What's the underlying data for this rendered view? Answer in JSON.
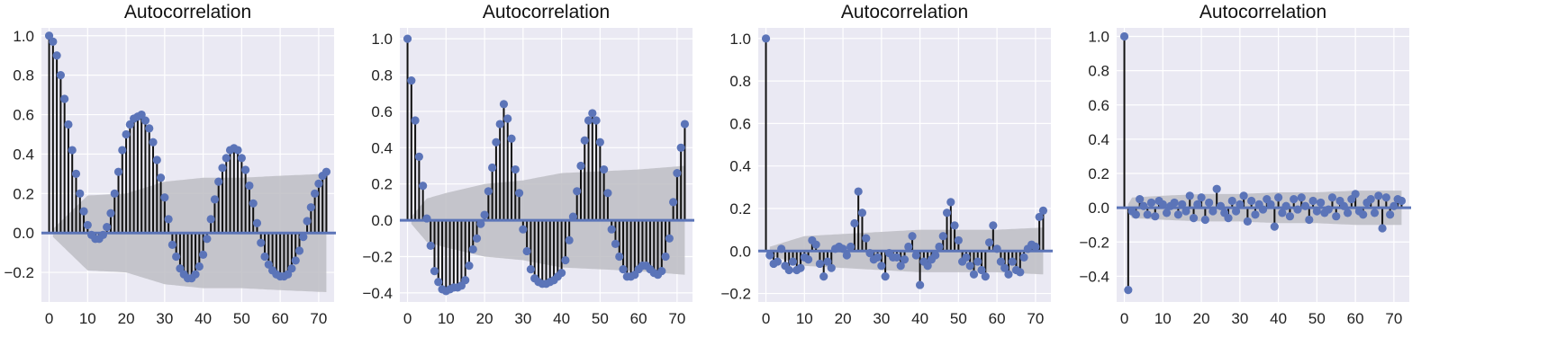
{
  "style": {
    "background": "#ffffff",
    "plot_background": "#eae9f3",
    "grid_color": "#ffffff",
    "stem_color": "#111111",
    "marker_color": "#5b74b8",
    "zero_line_color": "#5b74b8",
    "confidence_band_color": "#bdbdc3"
  },
  "chart_data": [
    {
      "type": "stem",
      "title": "Autocorrelation",
      "xlabel": "",
      "ylabel": "",
      "xlim": [
        -2,
        74
      ],
      "ylim": [
        -0.35,
        1.04
      ],
      "grid": true,
      "xticks": [
        0,
        10,
        20,
        30,
        40,
        50,
        60,
        70
      ],
      "yticks": [
        -0.2,
        0.0,
        0.2,
        0.4,
        0.6,
        0.8,
        1.0
      ],
      "confidence_band": {
        "lags": [
          1,
          10,
          20,
          30,
          40,
          50,
          60,
          72
        ],
        "upper": [
          0.02,
          0.19,
          0.2,
          0.26,
          0.28,
          0.28,
          0.29,
          0.3
        ],
        "lower": [
          -0.02,
          -0.19,
          -0.2,
          -0.26,
          -0.28,
          -0.28,
          -0.29,
          -0.3
        ]
      },
      "lags": [
        0,
        1,
        2,
        3,
        4,
        5,
        6,
        7,
        8,
        9,
        10,
        11,
        12,
        13,
        14,
        15,
        16,
        17,
        18,
        19,
        20,
        21,
        22,
        23,
        24,
        25,
        26,
        27,
        28,
        29,
        30,
        31,
        32,
        33,
        34,
        35,
        36,
        37,
        38,
        39,
        40,
        41,
        42,
        43,
        44,
        45,
        46,
        47,
        48,
        49,
        50,
        51,
        52,
        53,
        54,
        55,
        56,
        57,
        58,
        59,
        60,
        61,
        62,
        63,
        64,
        65,
        66,
        67,
        68,
        69,
        70,
        71,
        72
      ],
      "values": [
        1.0,
        0.97,
        0.9,
        0.8,
        0.68,
        0.55,
        0.42,
        0.3,
        0.2,
        0.11,
        0.04,
        -0.01,
        -0.03,
        -0.03,
        -0.01,
        0.03,
        0.1,
        0.2,
        0.31,
        0.42,
        0.5,
        0.55,
        0.58,
        0.59,
        0.6,
        0.57,
        0.53,
        0.46,
        0.37,
        0.28,
        0.18,
        0.07,
        -0.06,
        -0.12,
        -0.18,
        -0.21,
        -0.23,
        -0.23,
        -0.21,
        -0.17,
        -0.11,
        -0.03,
        0.07,
        0.17,
        0.26,
        0.33,
        0.38,
        0.42,
        0.43,
        0.42,
        0.38,
        0.32,
        0.24,
        0.15,
        0.05,
        -0.05,
        -0.12,
        -0.16,
        -0.19,
        -0.21,
        -0.22,
        -0.22,
        -0.21,
        -0.18,
        -0.14,
        -0.09,
        -0.02,
        0.06,
        0.13,
        0.2,
        0.25,
        0.29,
        0.31
      ]
    },
    {
      "type": "stem",
      "title": "Autocorrelation",
      "xlabel": "",
      "ylabel": "",
      "xlim": [
        -2,
        74
      ],
      "ylim": [
        -0.45,
        1.06
      ],
      "grid": true,
      "xticks": [
        0,
        10,
        20,
        30,
        40,
        50,
        60,
        70
      ],
      "yticks": [
        -0.4,
        -0.2,
        0.0,
        0.2,
        0.4,
        0.6,
        0.8,
        1.0
      ],
      "confidence_band": {
        "lags": [
          1,
          5,
          10,
          20,
          30,
          40,
          50,
          60,
          72
        ],
        "upper": [
          0.02,
          0.12,
          0.15,
          0.2,
          0.22,
          0.26,
          0.27,
          0.28,
          0.3
        ],
        "lower": [
          -0.02,
          -0.12,
          -0.15,
          -0.2,
          -0.22,
          -0.26,
          -0.27,
          -0.28,
          -0.3
        ]
      },
      "lags": [
        0,
        1,
        2,
        3,
        4,
        5,
        6,
        7,
        8,
        9,
        10,
        11,
        12,
        13,
        14,
        15,
        16,
        17,
        18,
        19,
        20,
        21,
        22,
        23,
        24,
        25,
        26,
        27,
        28,
        29,
        30,
        31,
        32,
        33,
        34,
        35,
        36,
        37,
        38,
        39,
        40,
        41,
        42,
        43,
        44,
        45,
        46,
        47,
        48,
        49,
        50,
        51,
        52,
        53,
        54,
        55,
        56,
        57,
        58,
        59,
        60,
        61,
        62,
        63,
        64,
        65,
        66,
        67,
        68,
        69,
        70,
        71,
        72
      ],
      "values": [
        1.0,
        0.77,
        0.55,
        0.35,
        0.19,
        0.01,
        -0.14,
        -0.28,
        -0.34,
        -0.38,
        -0.39,
        -0.38,
        -0.37,
        -0.37,
        -0.36,
        -0.33,
        -0.25,
        -0.16,
        -0.1,
        -0.02,
        0.03,
        0.16,
        0.29,
        0.43,
        0.53,
        0.64,
        0.56,
        0.45,
        0.28,
        0.15,
        -0.05,
        -0.17,
        -0.27,
        -0.32,
        -0.34,
        -0.35,
        -0.35,
        -0.34,
        -0.33,
        -0.31,
        -0.29,
        -0.22,
        -0.11,
        0.02,
        0.16,
        0.3,
        0.44,
        0.55,
        0.59,
        0.55,
        0.43,
        0.28,
        0.15,
        -0.05,
        -0.13,
        -0.2,
        -0.27,
        -0.31,
        -0.31,
        -0.3,
        -0.27,
        -0.25,
        -0.25,
        -0.27,
        -0.29,
        -0.3,
        -0.28,
        -0.2,
        -0.1,
        0.1,
        0.26,
        0.4,
        0.53
      ]
    },
    {
      "type": "stem",
      "title": "Autocorrelation",
      "xlabel": "",
      "ylabel": "",
      "xlim": [
        -2,
        74
      ],
      "ylim": [
        -0.24,
        1.05
      ],
      "grid": true,
      "xticks": [
        0,
        10,
        20,
        30,
        40,
        50,
        60,
        70
      ],
      "yticks": [
        -0.2,
        0.0,
        0.2,
        0.4,
        0.6,
        0.8,
        1.0
      ],
      "confidence_band": {
        "lags": [
          1,
          10,
          20,
          30,
          40,
          50,
          60,
          72
        ],
        "upper": [
          0.02,
          0.07,
          0.08,
          0.09,
          0.1,
          0.1,
          0.1,
          0.11
        ],
        "lower": [
          -0.02,
          -0.07,
          -0.08,
          -0.09,
          -0.1,
          -0.1,
          -0.1,
          -0.11
        ]
      },
      "lags": [
        0,
        1,
        2,
        3,
        4,
        5,
        6,
        7,
        8,
        9,
        10,
        11,
        12,
        13,
        14,
        15,
        16,
        17,
        18,
        19,
        20,
        21,
        22,
        23,
        24,
        25,
        26,
        27,
        28,
        29,
        30,
        31,
        32,
        33,
        34,
        35,
        36,
        37,
        38,
        39,
        40,
        41,
        42,
        43,
        44,
        45,
        46,
        47,
        48,
        49,
        50,
        51,
        52,
        53,
        54,
        55,
        56,
        57,
        58,
        59,
        60,
        61,
        62,
        63,
        64,
        65,
        66,
        67,
        68,
        69,
        70,
        71,
        72
      ],
      "values": [
        1.0,
        -0.02,
        -0.06,
        -0.05,
        0.01,
        -0.07,
        -0.09,
        -0.05,
        -0.09,
        -0.08,
        -0.03,
        -0.04,
        0.05,
        0.03,
        -0.06,
        -0.12,
        -0.05,
        -0.08,
        0.01,
        0.02,
        0.01,
        -0.02,
        0.02,
        0.13,
        0.28,
        0.18,
        0.06,
        -0.01,
        -0.04,
        -0.03,
        -0.07,
        -0.12,
        -0.01,
        -0.03,
        -0.03,
        -0.07,
        -0.04,
        0.02,
        0.07,
        -0.02,
        -0.16,
        -0.05,
        -0.07,
        -0.04,
        -0.02,
        0.02,
        0.07,
        0.18,
        0.23,
        0.12,
        0.05,
        -0.05,
        -0.03,
        -0.07,
        -0.11,
        -0.05,
        -0.09,
        -0.12,
        0.04,
        0.12,
        0.01,
        -0.05,
        -0.08,
        -0.11,
        -0.05,
        -0.09,
        -0.1,
        -0.03,
        0.01,
        0.03,
        0.02,
        0.16,
        0.19
      ]
    },
    {
      "type": "stem",
      "title": "Autocorrelation",
      "xlabel": "",
      "ylabel": "",
      "xlim": [
        -2,
        74
      ],
      "ylim": [
        -0.55,
        1.05
      ],
      "grid": true,
      "xticks": [
        0,
        10,
        20,
        30,
        40,
        50,
        60,
        70
      ],
      "yticks": [
        -0.4,
        -0.2,
        0.0,
        0.2,
        0.4,
        0.6,
        0.8,
        1.0
      ],
      "confidence_band": {
        "lags": [
          1,
          2,
          10,
          20,
          30,
          40,
          50,
          60,
          72
        ],
        "upper": [
          0.02,
          0.06,
          0.07,
          0.08,
          0.08,
          0.09,
          0.09,
          0.1,
          0.1
        ],
        "lower": [
          -0.02,
          -0.06,
          -0.07,
          -0.08,
          -0.08,
          -0.09,
          -0.09,
          -0.1,
          -0.1
        ]
      },
      "lags": [
        0,
        1,
        2,
        3,
        4,
        5,
        6,
        7,
        8,
        9,
        10,
        11,
        12,
        13,
        14,
        15,
        16,
        17,
        18,
        19,
        20,
        21,
        22,
        23,
        24,
        25,
        26,
        27,
        28,
        29,
        30,
        31,
        32,
        33,
        34,
        35,
        36,
        37,
        38,
        39,
        40,
        41,
        42,
        43,
        44,
        45,
        46,
        47,
        48,
        49,
        50,
        51,
        52,
        53,
        54,
        55,
        56,
        57,
        58,
        59,
        60,
        61,
        62,
        63,
        64,
        65,
        66,
        67,
        68,
        69,
        70,
        71,
        72
      ],
      "values": [
        1.0,
        -0.48,
        -0.02,
        -0.04,
        0.05,
        0.01,
        -0.04,
        0.03,
        -0.05,
        0.04,
        0.02,
        -0.03,
        0.01,
        0.03,
        -0.04,
        0.02,
        -0.02,
        0.07,
        -0.06,
        0.02,
        0.06,
        -0.07,
        0.03,
        -0.02,
        0.11,
        0.01,
        -0.03,
        -0.06,
        0.04,
        -0.02,
        0.02,
        0.07,
        -0.08,
        0.04,
        -0.04,
        0.02,
        -0.01,
        0.05,
        0.02,
        -0.11,
        0.06,
        -0.03,
        0.01,
        -0.05,
        0.05,
        -0.01,
        0.06,
        0.01,
        -0.07,
        0.04,
        -0.02,
        0.03,
        -0.03,
        -0.01,
        0.06,
        -0.05,
        0.04,
        0.01,
        -0.03,
        0.05,
        0.08,
        -0.02,
        -0.04,
        0.03,
        0.05,
        -0.03,
        0.07,
        -0.12,
        0.06,
        -0.04,
        0.01,
        0.05,
        0.04
      ]
    }
  ]
}
